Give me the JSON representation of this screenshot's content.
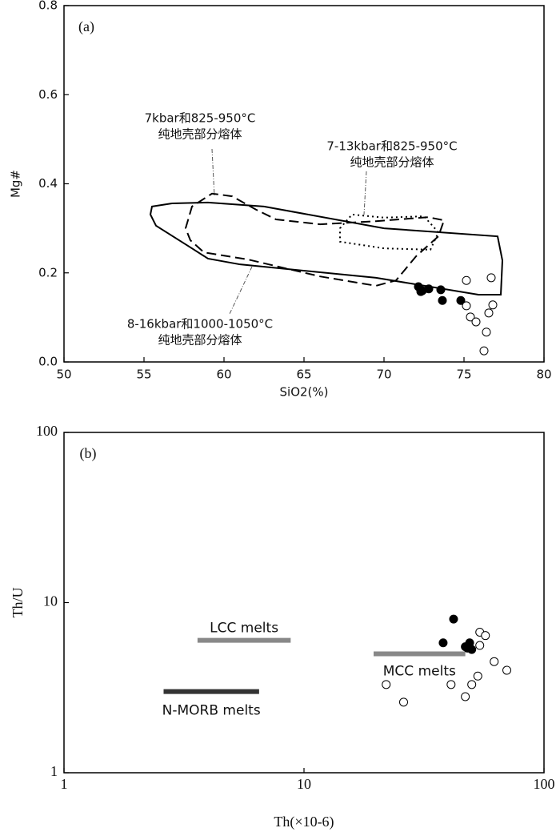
{
  "chart_data": [
    {
      "type": "scatter",
      "panel_label": "(a)",
      "xlabel": "SiO2(%)",
      "ylabel": "Mg#",
      "xlim": [
        50,
        80
      ],
      "ylim": [
        0,
        0.8
      ],
      "xticks": [
        50,
        55,
        60,
        65,
        70,
        75,
        80
      ],
      "yticks": [
        {
          "value": 0,
          "label": "0.0"
        },
        0.2,
        0.4,
        0.6,
        0.8
      ],
      "series": [
        {
          "marker": "filled",
          "color": "#000000",
          "x": [
            72.15,
            72.3,
            72.4,
            72.8,
            73.55,
            73.65,
            74.8
          ],
          "y": [
            0.169,
            0.158,
            0.16,
            0.164,
            0.162,
            0.138,
            0.138
          ]
        },
        {
          "marker": "open",
          "color": "#000000",
          "x": [
            75.15,
            76.7,
            75.15,
            75.4,
            75.75,
            76.55,
            76.8,
            76.4,
            76.25
          ],
          "y": [
            0.183,
            0.189,
            0.126,
            0.101,
            0.09,
            0.11,
            0.128,
            0.067,
            0.025
          ]
        }
      ],
      "fields": [
        {
          "style": "solid",
          "x": [
            55.5,
            56.75,
            59.0,
            62.5,
            70.0,
            77.1,
            77.4,
            77.3,
            75.9,
            69.5,
            61.0,
            59.0,
            58.0,
            55.75,
            55.4
          ],
          "y": [
            0.349,
            0.356,
            0.358,
            0.349,
            0.3,
            0.282,
            0.228,
            0.151,
            0.151,
            0.189,
            0.219,
            0.232,
            0.255,
            0.306,
            0.331
          ]
        },
        {
          "style": "dashed",
          "x": [
            57.6,
            58.0,
            59.25,
            60.5,
            62.0,
            63.25,
            66.0,
            69.5,
            72.75,
            73.75,
            73.4,
            72.0,
            70.75,
            69.5,
            66.0,
            61.5,
            58.75,
            57.9
          ],
          "y": [
            0.3,
            0.349,
            0.378,
            0.372,
            0.342,
            0.32,
            0.309,
            0.316,
            0.325,
            0.318,
            0.282,
            0.237,
            0.183,
            0.171,
            0.192,
            0.23,
            0.246,
            0.273
          ]
        },
        {
          "style": "dotted",
          "x": [
            67.25,
            68.0,
            70.0,
            72.5,
            73.4,
            72.9,
            70.0,
            67.25
          ],
          "y": [
            0.3,
            0.331,
            0.324,
            0.327,
            0.291,
            0.252,
            0.255,
            0.27
          ]
        }
      ],
      "annotations": [
        {
          "lines": [
            "7kbar和825-950°C",
            "纯地壳部分熔体"
          ]
        },
        {
          "lines": [
            "7-13kbar和825-950°C",
            "纯地壳部分熔体"
          ]
        },
        {
          "lines": [
            "8-16kbar和1000-1050°C",
            "纯地壳部分熔体"
          ]
        }
      ]
    },
    {
      "type": "scatter",
      "panel_label": "(b)",
      "xlabel": "Th(×10-6)",
      "ylabel": "Th/U",
      "log_x": true,
      "log_y": true,
      "xlim": [
        1,
        100
      ],
      "ylim": [
        1,
        100
      ],
      "xticks": [
        1,
        10,
        100
      ],
      "yticks": [
        1,
        10,
        100
      ],
      "series": [
        {
          "marker": "filled",
          "color": "#000000",
          "x": [
            38,
            42,
            47,
            49,
            50,
            48
          ],
          "y": [
            5.8,
            8.0,
            5.5,
            5.8,
            5.3,
            5.4
          ]
        },
        {
          "marker": "open",
          "color": "#000000",
          "x": [
            22,
            26,
            41,
            47,
            50,
            53,
            54,
            54,
            57,
            62,
            70
          ],
          "y": [
            3.3,
            2.6,
            3.3,
            2.8,
            3.3,
            3.7,
            5.6,
            6.7,
            6.4,
            4.5,
            4.0
          ]
        }
      ],
      "bands": [
        {
          "label": "LCC melts",
          "color": "#888888",
          "x": [
            3.6,
            8.8
          ],
          "y": 6.0
        },
        {
          "label": "N-MORB melts",
          "color": "#333333",
          "x": [
            2.6,
            6.5
          ],
          "y": 3.0
        },
        {
          "label": "MCC melts",
          "color": "#888888",
          "x": [
            19.5,
            47
          ],
          "y": 5.0
        }
      ]
    }
  ]
}
